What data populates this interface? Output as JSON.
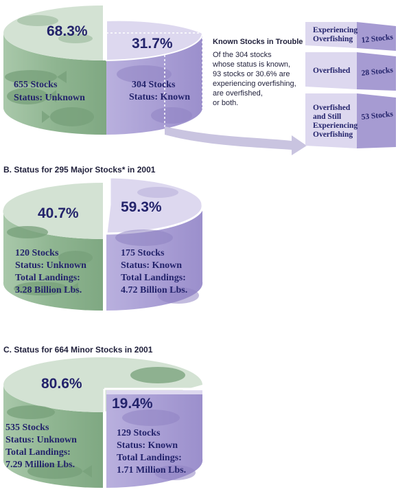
{
  "chart_data": [
    {
      "type": "pie",
      "title": "",
      "slices": [
        {
          "pct_label": "68.3%",
          "value": 68.3,
          "lines": [
            "655 Stocks",
            "Status: Unknown"
          ]
        },
        {
          "pct_label": "31.7%",
          "value": 31.7,
          "lines": [
            "304 Stocks",
            "Status: Known"
          ]
        }
      ],
      "callout": {
        "title": "Known Stocks in Trouble",
        "text_lines": [
          "Of the 304 stocks",
          "whose status is known,",
          "93 stocks or 30.6% are",
          "experiencing  overfishing,",
          "are  overfished,",
          "or both."
        ],
        "blocks": [
          {
            "label_lines": [
              "Experiencing",
              "Overfishing"
            ],
            "value": 12,
            "value_label": "12 Stocks"
          },
          {
            "label_lines": [
              "Overfished"
            ],
            "value": 28,
            "value_label": "28 Stocks"
          },
          {
            "label_lines": [
              "Overfished",
              "and Still",
              "Experiencing",
              "Overfishing"
            ],
            "value": 53,
            "value_label": "53 Stocks"
          }
        ]
      }
    },
    {
      "type": "pie",
      "title": "B. Status for 295 Major Stocks* in 2001",
      "slices": [
        {
          "pct_label": "40.7%",
          "value": 40.7,
          "lines": [
            "120 Stocks",
            "Status: Unknown",
            "Total Landings:",
            "3.28 Billion Lbs."
          ]
        },
        {
          "pct_label": "59.3%",
          "value": 59.3,
          "lines": [
            "175 Stocks",
            "Status: Known",
            "Total Landings:",
            "4.72 Billion Lbs."
          ]
        }
      ]
    },
    {
      "type": "pie",
      "title": "C. Status for 664 Minor Stocks in 2001",
      "slices": [
        {
          "pct_label": "80.6%",
          "value": 80.6,
          "lines": [
            "535 Stocks",
            "Status: Unknown",
            "Total Landings:",
            "7.29 Million Lbs."
          ]
        },
        {
          "pct_label": "19.4%",
          "value": 19.4,
          "lines": [
            "129 Stocks",
            "Status: Known",
            "Total Landings:",
            "1.71 Million Lbs."
          ]
        }
      ]
    }
  ],
  "colors": {
    "unknown_top": "#d3e2d3",
    "unknown_side": "#8fb591",
    "unknown_fish": "#77a07a",
    "known_top": "#ddd8ef",
    "known_side": "#a69bd2",
    "known_fish": "#8f83c2",
    "text": "#23236b",
    "arrow": "#c9c4e0"
  }
}
